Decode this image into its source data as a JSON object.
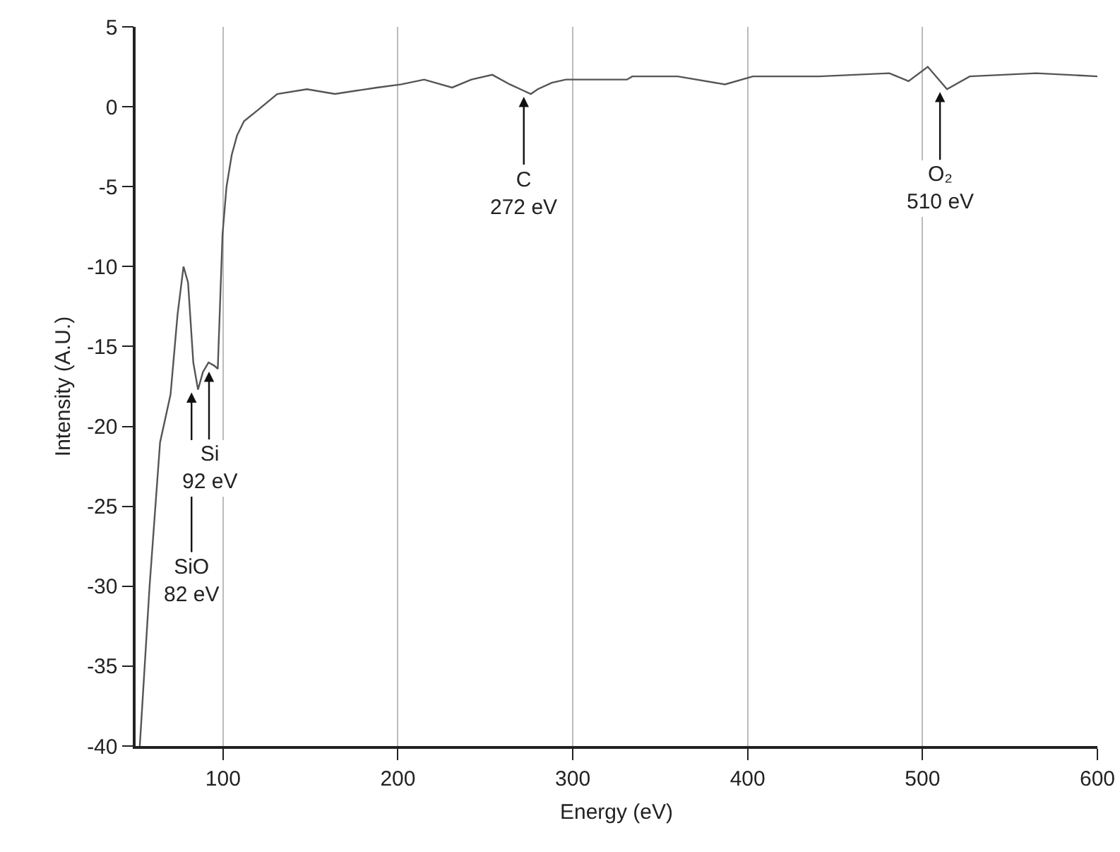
{
  "chart_data": {
    "type": "line",
    "xlabel": "Energy (eV)",
    "ylabel": "Intensity (A.U.)",
    "xlim": [
      50,
      600
    ],
    "xticks": [
      100,
      200,
      300,
      400,
      500,
      600
    ],
    "ylim": [
      -40,
      5
    ],
    "yticks": [
      -40,
      -35,
      -30,
      -25,
      -20,
      -15,
      -10,
      -5,
      0,
      5
    ],
    "grid": "x",
    "marker": "none",
    "line_style": "solid",
    "series": [
      {
        "color": "#555555",
        "x": [
          52.4,
          58,
          64,
          70,
          74,
          77.4,
          80,
          83,
          85.7,
          88.5,
          91.7,
          95,
          97,
          99.7,
          102,
          105,
          108,
          112,
          120,
          131,
          148,
          164,
          188,
          202,
          215,
          231,
          242,
          254,
          264,
          272,
          276,
          280,
          288,
          296,
          304,
          331,
          334,
          360,
          387,
          403,
          441,
          481,
          492,
          503,
          514,
          527,
          565,
          600
        ],
        "values": [
          -40,
          -30,
          -21,
          -18,
          -13,
          -10,
          -11,
          -16,
          -17.7,
          -16.6,
          -16,
          -16.2,
          -16.4,
          -8,
          -5,
          -3,
          -1.8,
          -0.9,
          -0.2,
          0.8,
          1.1,
          0.8,
          1.2,
          1.4,
          1.7,
          1.2,
          1.7,
          2,
          1.4,
          1,
          0.8,
          1.1,
          1.5,
          1.7,
          1.7,
          1.7,
          1.9,
          1.9,
          1.4,
          1.9,
          1.9,
          2.1,
          1.6,
          2.5,
          1.1,
          1.9,
          2.1,
          1.9
        ]
      }
    ],
    "annotations": [
      {
        "text": "SiO\n82 eV",
        "x": 82,
        "y": -17.7
      },
      {
        "text": "Si\n92 eV",
        "x": 92,
        "y": -16.4
      },
      {
        "text": "C\n272 eV",
        "x": 272,
        "y": 0.8
      },
      {
        "text": "O₂\n510 eV",
        "x": 510,
        "y": 1.1
      }
    ]
  }
}
